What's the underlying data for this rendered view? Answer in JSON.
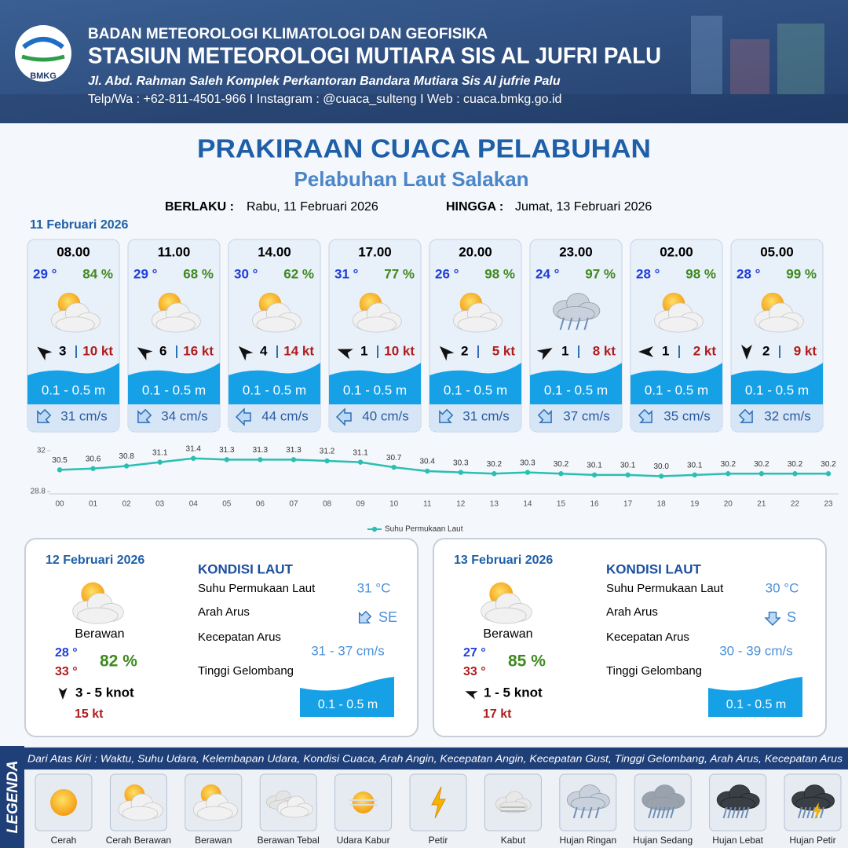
{
  "header": {
    "logo": "BMKG",
    "org": "BADAN METEOROLOGI KLIMATOLOGI DAN GEOFISIKA",
    "station": "STASIUN METEOROLOGI MUTIARA SIS AL JUFRI PALU",
    "address": "Jl. Abd. Rahman Saleh Komplek Perkantoran Bandara Mutiara Sis Al jufrie Palu",
    "contact": "Telp/Wa : +62-811-4501-966  I  Instagram : @cuaca_sulteng  I  Web : cuaca.bmkg.go.id"
  },
  "title": "PRAKIRAAN CUACA PELABUHAN",
  "subtitle": "Pelabuhan Laut Salakan",
  "validity": {
    "from_label": "BERLAKU :",
    "from": "Rabu, 11 Februari 2026",
    "to_label": "HINGGA :",
    "to": "Jumat, 13 Februari 2026"
  },
  "day1": {
    "date": "11 Februari 2026",
    "forecasts": [
      {
        "time": "08.00",
        "temp": "29 °",
        "humidity": "84 %",
        "wind": "3",
        "gust": "10 kt",
        "wave": "0.1 - 0.5 m",
        "current": "31 cm/s"
      },
      {
        "time": "11.00",
        "temp": "29 °",
        "humidity": "68 %",
        "wind": "6",
        "gust": "16 kt",
        "wave": "0.1 - 0.5 m",
        "current": "34 cm/s"
      },
      {
        "time": "14.00",
        "temp": "30 °",
        "humidity": "62 %",
        "wind": "4",
        "gust": "14 kt",
        "wave": "0.1 - 0.5 m",
        "current": "44 cm/s"
      },
      {
        "time": "17.00",
        "temp": "31 °",
        "humidity": "77 %",
        "wind": "1",
        "gust": "10 kt",
        "wave": "0.1 - 0.5 m",
        "current": "40 cm/s"
      },
      {
        "time": "20.00",
        "temp": "26 °",
        "humidity": "98 %",
        "wind": "2",
        "gust": "5 kt",
        "wave": "0.1 - 0.5 m",
        "current": "31 cm/s"
      },
      {
        "time": "23.00",
        "temp": "24 °",
        "humidity": "97 %",
        "wind": "1",
        "gust": "8 kt",
        "wave": "0.1 - 0.5 m",
        "current": "37 cm/s"
      },
      {
        "time": "02.00",
        "temp": "28 °",
        "humidity": "98 %",
        "wind": "1",
        "gust": "2 kt",
        "wave": "0.1 - 0.5 m",
        "current": "35 cm/s"
      },
      {
        "time": "05.00",
        "temp": "28 °",
        "humidity": "99 %",
        "wind": "2",
        "gust": "9 kt",
        "wave": "0.1 - 0.5 m",
        "current": "32 cm/s"
      }
    ]
  },
  "chart_data": {
    "type": "line",
    "categories": [
      "00",
      "01",
      "02",
      "03",
      "04",
      "05",
      "06",
      "07",
      "08",
      "09",
      "10",
      "11",
      "12",
      "13",
      "14",
      "15",
      "16",
      "17",
      "18",
      "19",
      "20",
      "21",
      "22",
      "23"
    ],
    "series": [
      {
        "name": "Suhu Permukaan Laut",
        "color": "#2bbfb3",
        "values": [
          30.5,
          30.6,
          30.8,
          31.1,
          31.4,
          31.3,
          31.3,
          31.3,
          31.2,
          31.1,
          30.7,
          30.4,
          30.3,
          30.2,
          30.3,
          30.2,
          30.1,
          30.1,
          30.0,
          30.1,
          30.2,
          30.2,
          30.2,
          30.2
        ],
        "value_labels": [
          "30.5",
          "30.6",
          "30.8",
          "31.1",
          "31.4",
          "31.3",
          "31.3",
          "31.3",
          "31.2",
          "31.1",
          "30.7",
          "30.4",
          "30.3",
          "30.2",
          "30.3",
          "30.2",
          "30.1",
          "30.1",
          "30.0",
          "30.1",
          "30.2",
          "30.2",
          "30.2",
          "30.2"
        ]
      }
    ],
    "ylim": [
      28.8,
      32
    ],
    "yticks": [
      28.8,
      32
    ],
    "legend": "bottom"
  },
  "days": [
    {
      "date": "12 Februari 2026",
      "condition": "Berawan",
      "tmin": "28 °",
      "tmax": "33 °",
      "humidity": "82 %",
      "wind": "3  - 5 knot",
      "gust": "15 kt",
      "sea": {
        "heading": "KONDISI LAUT",
        "sst_label": "Suhu Permukaan Laut",
        "dir_label": "Arah Arus",
        "speed_label": "Kecepatan Arus",
        "wave_label": "Tinggi Gelombang",
        "sst": "31 °C",
        "dir": "SE",
        "speed": "31 - 37 cm/s",
        "wave": "0.1 - 0.5 m"
      }
    },
    {
      "date": "13 Februari 2026",
      "condition": "Berawan",
      "tmin": "27 °",
      "tmax": "33 °",
      "humidity": "85 %",
      "wind": "1 - 5 knot",
      "gust": "17 kt",
      "sea": {
        "heading": "KONDISI LAUT",
        "sst_label": "Suhu Permukaan Laut",
        "dir_label": "Arah Arus",
        "speed_label": "Kecepatan Arus",
        "wave_label": "Tinggi Gelombang",
        "sst": "30 °C",
        "dir": "S",
        "speed": "30 - 39 cm/s",
        "wave": "0.1 - 0.5 m"
      }
    }
  ],
  "legend": {
    "title": "LEGENDA",
    "description": "Dari Atas Kiri : Waktu, Suhu Udara, Kelembapan Udara, Kondisi Cuaca, Arah Angin, Kecepatan Angin, Kecepatan Gust, Tinggi Gelombang, Arah Arus, Kecepatan Arus",
    "items": [
      "Cerah",
      "Cerah Berawan",
      "Berawan",
      "Berawan Tebal",
      "Udara Kabur",
      "Petir",
      "Kabut",
      "Hujan Ringan",
      "Hujan Sedang",
      "Hujan Lebat",
      "Hujan Petir"
    ]
  }
}
